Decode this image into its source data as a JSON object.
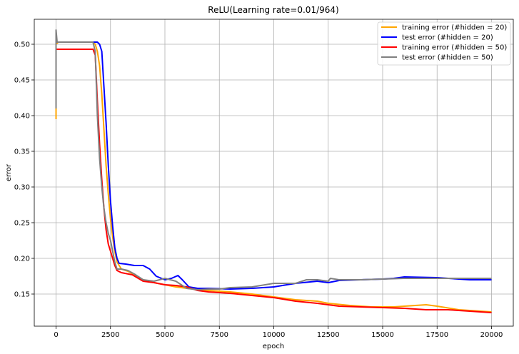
{
  "chart_data": {
    "type": "line",
    "title": "ReLU(Learning rate=0.01/964)",
    "xlabel": "epoch",
    "ylabel": "error",
    "xlim": [
      -1000,
      21000
    ],
    "ylim": [
      0.105,
      0.535
    ],
    "xticks": [
      0,
      2500,
      5000,
      7500,
      10000,
      12500,
      15000,
      17500,
      20000
    ],
    "yticks": [
      0.15,
      0.2,
      0.25,
      0.3,
      0.35,
      0.4,
      0.45,
      0.5
    ],
    "grid": true,
    "legend_position": "top-right",
    "series": [
      {
        "name": "training error (#hidden = 20)",
        "color": "#FFA500",
        "points": [
          [
            0,
            0.395
          ],
          [
            0,
            0.41
          ],
          [
            0,
            0.5
          ],
          [
            100,
            0.503
          ],
          [
            1700,
            0.503
          ],
          [
            1800,
            0.5
          ],
          [
            1900,
            0.49
          ],
          [
            2000,
            0.47
          ],
          [
            2100,
            0.43
          ],
          [
            2200,
            0.38
          ],
          [
            2300,
            0.33
          ],
          [
            2400,
            0.29
          ],
          [
            2500,
            0.255
          ],
          [
            2600,
            0.23
          ],
          [
            2700,
            0.21
          ],
          [
            2800,
            0.195
          ],
          [
            3000,
            0.185
          ],
          [
            3300,
            0.182
          ],
          [
            3600,
            0.177
          ],
          [
            4000,
            0.17
          ],
          [
            4500,
            0.166
          ],
          [
            5000,
            0.163
          ],
          [
            5500,
            0.16
          ],
          [
            6000,
            0.158
          ],
          [
            7000,
            0.155
          ],
          [
            8000,
            0.153
          ],
          [
            9000,
            0.15
          ],
          [
            10000,
            0.146
          ],
          [
            11000,
            0.142
          ],
          [
            12000,
            0.14
          ],
          [
            12500,
            0.137
          ],
          [
            13500,
            0.134
          ],
          [
            14500,
            0.132
          ],
          [
            15500,
            0.132
          ],
          [
            16500,
            0.134
          ],
          [
            17000,
            0.135
          ],
          [
            17500,
            0.133
          ],
          [
            18500,
            0.128
          ],
          [
            19000,
            0.127
          ],
          [
            20000,
            0.125
          ]
        ]
      },
      {
        "name": "test error (#hidden = 20)",
        "color": "#0000FF",
        "points": [
          [
            0,
            0.42
          ],
          [
            0,
            0.503
          ],
          [
            100,
            0.503
          ],
          [
            1900,
            0.503
          ],
          [
            2000,
            0.5
          ],
          [
            2100,
            0.49
          ],
          [
            2200,
            0.44
          ],
          [
            2300,
            0.39
          ],
          [
            2400,
            0.33
          ],
          [
            2500,
            0.28
          ],
          [
            2600,
            0.245
          ],
          [
            2700,
            0.215
          ],
          [
            2800,
            0.2
          ],
          [
            2900,
            0.193
          ],
          [
            3200,
            0.192
          ],
          [
            3600,
            0.19
          ],
          [
            4000,
            0.19
          ],
          [
            4300,
            0.185
          ],
          [
            4600,
            0.175
          ],
          [
            5000,
            0.17
          ],
          [
            5300,
            0.172
          ],
          [
            5600,
            0.176
          ],
          [
            5800,
            0.17
          ],
          [
            6100,
            0.16
          ],
          [
            6500,
            0.158
          ],
          [
            7000,
            0.158
          ],
          [
            8000,
            0.157
          ],
          [
            9000,
            0.158
          ],
          [
            10000,
            0.16
          ],
          [
            11000,
            0.165
          ],
          [
            12000,
            0.168
          ],
          [
            12500,
            0.166
          ],
          [
            13000,
            0.169
          ],
          [
            15000,
            0.171
          ],
          [
            15500,
            0.172
          ],
          [
            16000,
            0.174
          ],
          [
            17500,
            0.173
          ],
          [
            19000,
            0.17
          ],
          [
            20000,
            0.17
          ]
        ]
      },
      {
        "name": "training error (#hidden = 50)",
        "color": "#FF0000",
        "points": [
          [
            0,
            0.43
          ],
          [
            0,
            0.493
          ],
          [
            100,
            0.493
          ],
          [
            1700,
            0.493
          ],
          [
            1800,
            0.485
          ],
          [
            1900,
            0.42
          ],
          [
            2000,
            0.36
          ],
          [
            2100,
            0.31
          ],
          [
            2200,
            0.27
          ],
          [
            2300,
            0.24
          ],
          [
            2400,
            0.22
          ],
          [
            2500,
            0.21
          ],
          [
            2600,
            0.2
          ],
          [
            2700,
            0.19
          ],
          [
            2800,
            0.183
          ],
          [
            3000,
            0.18
          ],
          [
            3500,
            0.177
          ],
          [
            4000,
            0.168
          ],
          [
            4500,
            0.166
          ],
          [
            5000,
            0.163
          ],
          [
            5500,
            0.162
          ],
          [
            6000,
            0.16
          ],
          [
            6500,
            0.155
          ],
          [
            7000,
            0.153
          ],
          [
            8000,
            0.151
          ],
          [
            9000,
            0.148
          ],
          [
            10000,
            0.145
          ],
          [
            11000,
            0.14
          ],
          [
            12000,
            0.137
          ],
          [
            13000,
            0.133
          ],
          [
            14000,
            0.132
          ],
          [
            15000,
            0.131
          ],
          [
            16000,
            0.13
          ],
          [
            17000,
            0.128
          ],
          [
            18000,
            0.128
          ],
          [
            19000,
            0.126
          ],
          [
            20000,
            0.124
          ]
        ]
      },
      {
        "name": "test error (#hidden = 50)",
        "color": "#808080",
        "points": [
          [
            0,
            0.41
          ],
          [
            0,
            0.52
          ],
          [
            50,
            0.503
          ],
          [
            100,
            0.503
          ],
          [
            1700,
            0.503
          ],
          [
            1800,
            0.49
          ],
          [
            1900,
            0.4
          ],
          [
            2000,
            0.34
          ],
          [
            2100,
            0.3
          ],
          [
            2200,
            0.27
          ],
          [
            2300,
            0.25
          ],
          [
            2400,
            0.235
          ],
          [
            2500,
            0.225
          ],
          [
            2600,
            0.21
          ],
          [
            2700,
            0.195
          ],
          [
            2800,
            0.185
          ],
          [
            3000,
            0.185
          ],
          [
            3300,
            0.183
          ],
          [
            3600,
            0.178
          ],
          [
            4000,
            0.17
          ],
          [
            4500,
            0.168
          ],
          [
            5000,
            0.172
          ],
          [
            5500,
            0.168
          ],
          [
            6000,
            0.158
          ],
          [
            6500,
            0.156
          ],
          [
            7000,
            0.157
          ],
          [
            7500,
            0.157
          ],
          [
            8000,
            0.159
          ],
          [
            9000,
            0.16
          ],
          [
            10000,
            0.165
          ],
          [
            11000,
            0.165
          ],
          [
            11500,
            0.17
          ],
          [
            12000,
            0.17
          ],
          [
            12500,
            0.168
          ],
          [
            12600,
            0.172
          ],
          [
            13000,
            0.17
          ],
          [
            14000,
            0.17
          ],
          [
            15000,
            0.171
          ],
          [
            16000,
            0.172
          ],
          [
            17000,
            0.172
          ],
          [
            18000,
            0.172
          ],
          [
            19000,
            0.172
          ],
          [
            20000,
            0.172
          ]
        ]
      }
    ]
  }
}
